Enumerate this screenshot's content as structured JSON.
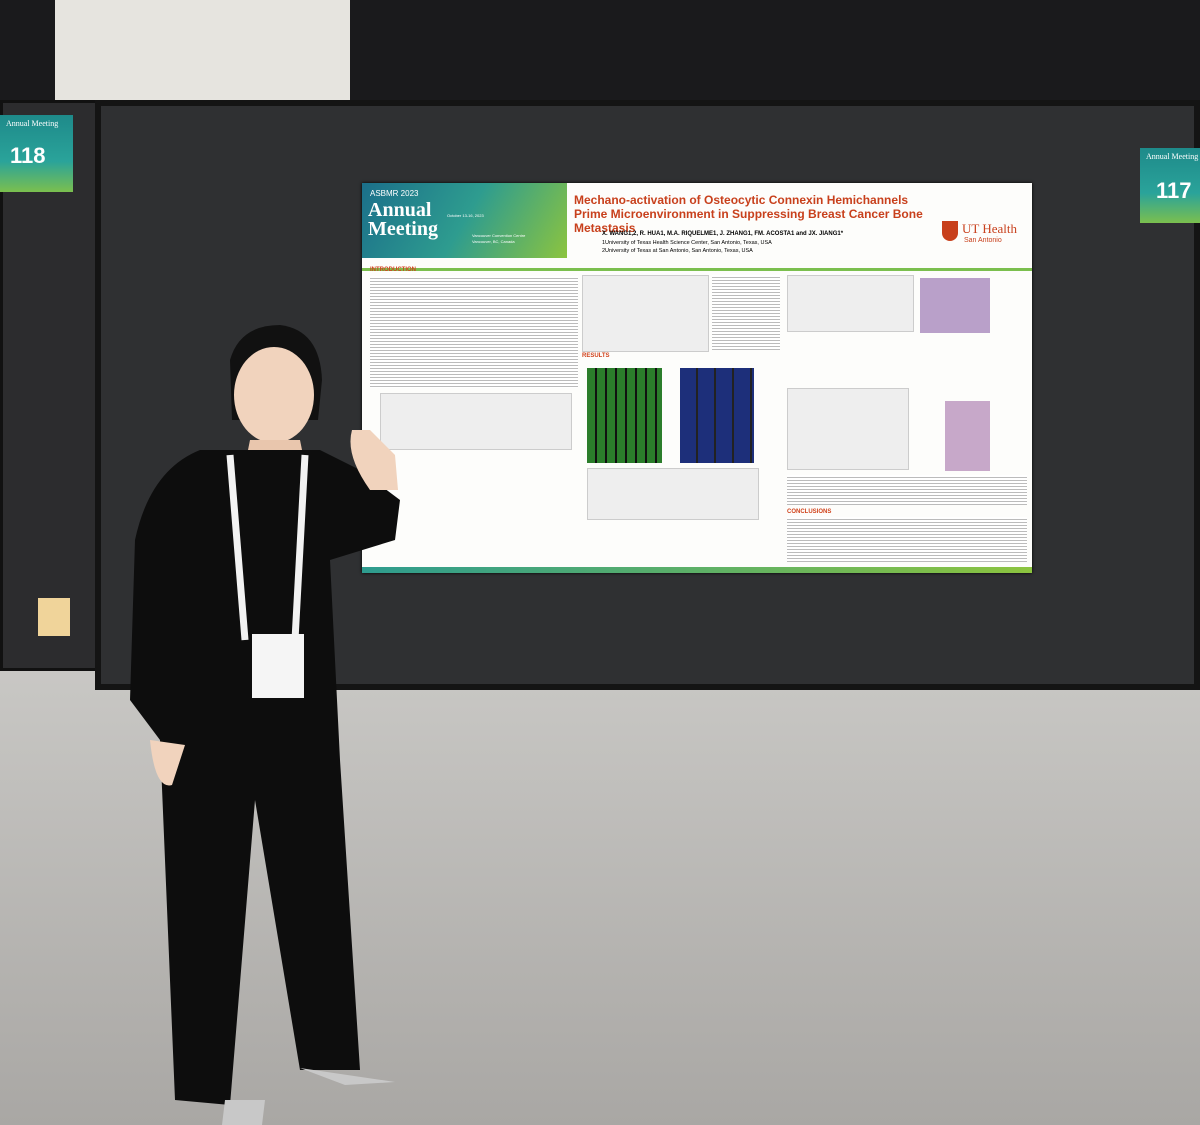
{
  "booth_signs": {
    "left": {
      "event": "Annual Meeting",
      "number": "118"
    },
    "right": {
      "event": "Annual Meeting",
      "number": "117"
    }
  },
  "poster": {
    "conference": {
      "org": "ASBMR 2023",
      "name": "Annual Meeting",
      "dates": "October 13-16, 2023",
      "venue": "Vancouver Convention Centre",
      "city": "Vancouver, BC, Canada"
    },
    "title": "Mechano-activation of Osteocytic Connexin Hemichannels Prime Microenvironment in Suppressing Breast Cancer Bone Metastasis",
    "authors": "X. WANG1,2, R. HUA1, M.A. RIQUELME1, J. ZHANG1, FM. ACOSTA1 and JX. JIANG1*",
    "affiliations": [
      "1University of Texas Health Science Center, San Antonio, Texas, USA",
      "2University of Texas at San Antonio, San Antonio, Texas, USA"
    ],
    "institution": {
      "name": "UT Health",
      "city": "San Antonio"
    },
    "sections": {
      "introduction": "INTRODUCTION",
      "results": "RESULTS",
      "conclusions": "CONCLUSIONS"
    }
  }
}
